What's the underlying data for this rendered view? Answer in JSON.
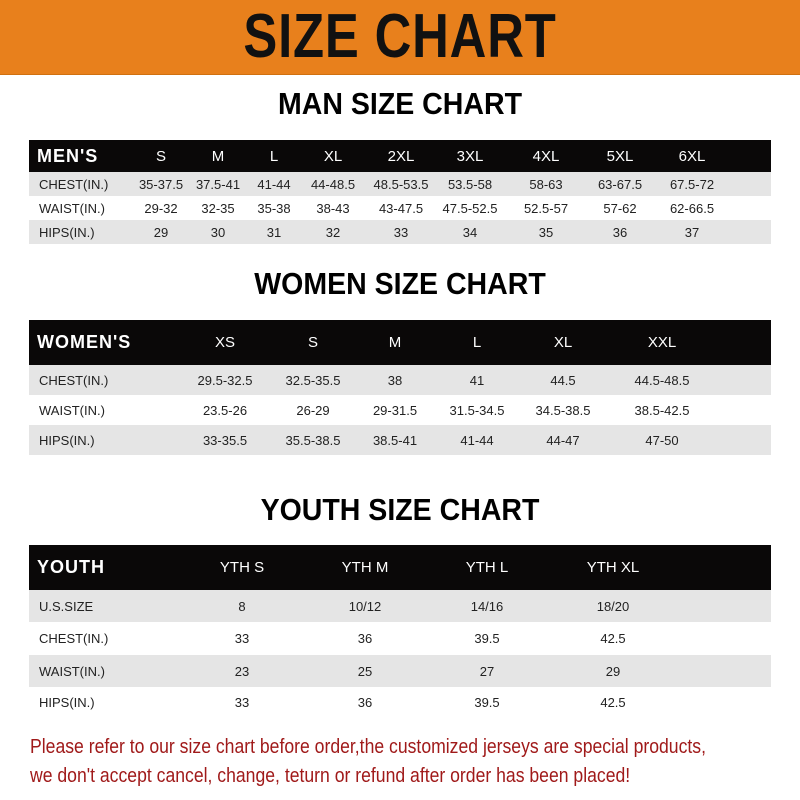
{
  "banner": {
    "title": "SIZE CHART",
    "color": "#e8801c"
  },
  "men": {
    "title": "MAN SIZE CHART",
    "header": [
      "MEN'S",
      "S",
      "M",
      "L",
      "XL",
      "2XL",
      "3XL",
      "4XL",
      "5XL",
      "6XL"
    ],
    "rows": [
      [
        "CHEST(IN.)",
        "35-37.5",
        "37.5-41",
        "41-44",
        "44-48.5",
        "48.5-53.5",
        "53.5-58",
        "58-63",
        "63-67.5",
        "67.5-72"
      ],
      [
        "WAIST(IN.)",
        "29-32",
        "32-35",
        "35-38",
        "38-43",
        "43-47.5",
        "47.5-52.5",
        "52.5-57",
        "57-62",
        "62-66.5"
      ],
      [
        "HIPS(IN.)",
        "29",
        "30",
        "31",
        "32",
        "33",
        "34",
        "35",
        "36",
        "37"
      ]
    ]
  },
  "women": {
    "title": "WOMEN SIZE CHART",
    "header": [
      "WOMEN'S",
      "XS",
      "S",
      "M",
      "L",
      "XL",
      "XXL"
    ],
    "rows": [
      [
        "CHEST(IN.)",
        "29.5-32.5",
        "32.5-35.5",
        "38",
        "41",
        "44.5",
        "44.5-48.5"
      ],
      [
        "WAIST(IN.)",
        "23.5-26",
        "26-29",
        "29-31.5",
        "31.5-34.5",
        "34.5-38.5",
        "38.5-42.5"
      ],
      [
        "HIPS(IN.)",
        "33-35.5",
        "35.5-38.5",
        "38.5-41",
        "41-44",
        "44-47",
        "47-50"
      ]
    ]
  },
  "youth": {
    "title": "YOUTH SIZE CHART",
    "header": [
      "YOUTH",
      "YTH S",
      "YTH M",
      "YTH L",
      "YTH XL"
    ],
    "rows": [
      [
        "U.S.SIZE",
        "8",
        "10/12",
        "14/16",
        "18/20"
      ],
      [
        "CHEST(IN.)",
        "33",
        "36",
        "39.5",
        "42.5"
      ],
      [
        "WAIST(IN.)",
        "23",
        "25",
        "27",
        "29"
      ],
      [
        "HIPS(IN.)",
        "33",
        "36",
        "39.5",
        "42.5"
      ]
    ]
  },
  "notice": {
    "line1": "Please refer to our size chart before order,the customized jerseys are special products,",
    "line2": "we don't accept cancel, change, teturn or refund after order has been placed!",
    "color": "#a01a1a"
  }
}
